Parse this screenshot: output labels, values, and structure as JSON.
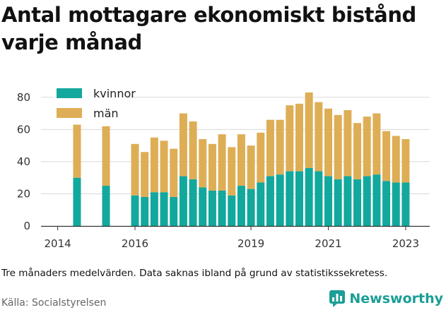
{
  "title": "Antal mottagare ekonomiskt bistånd varje månad",
  "note": "Tre månaders medelvärden. Data saknas ibland på grund av statistikssekretess.",
  "source": "Källa: Socialstyrelsen",
  "brand": "Newsworthy",
  "colors": {
    "kvinnor": "#12a89d",
    "man": "#deae56",
    "grid": "#d9d9d9",
    "axis": "#333333",
    "brand": "#1a9e96"
  },
  "chart_data": {
    "type": "bar",
    "stacked": true,
    "title": "Antal mottagare ekonomiskt bistånd varje månad",
    "xlabel": "",
    "ylabel": "",
    "ylim": [
      0,
      90
    ],
    "yticks": [
      0,
      20,
      40,
      60,
      80
    ],
    "xticks": [
      {
        "label": "2014",
        "at": 2014.0
      },
      {
        "label": "2016",
        "at": 2016.0
      },
      {
        "label": "2019",
        "at": 2019.0
      },
      {
        "label": "2021",
        "at": 2021.0
      },
      {
        "label": "2023",
        "at": 2023.0
      }
    ],
    "xlim": [
      2013.55,
      2023.38
    ],
    "grid": true,
    "legend_position": "top-left",
    "x": [
      2014.5,
      2015.25,
      2016.0,
      2016.25,
      2016.5,
      2016.75,
      2017.0,
      2017.25,
      2017.5,
      2017.75,
      2018.0,
      2018.25,
      2018.5,
      2018.75,
      2019.0,
      2019.25,
      2019.5,
      2019.75,
      2020.0,
      2020.25,
      2020.5,
      2020.75,
      2021.0,
      2021.25,
      2021.5,
      2021.75,
      2022.0,
      2022.25,
      2022.5,
      2022.75,
      2023.0
    ],
    "series": [
      {
        "name": "kvinnor",
        "values": [
          30,
          25,
          19,
          18,
          21,
          21,
          18,
          31,
          29,
          24,
          22,
          22,
          19,
          25,
          23,
          27,
          31,
          32,
          34,
          34,
          36,
          34,
          31,
          29,
          31,
          29,
          31,
          32,
          28,
          27,
          27
        ]
      },
      {
        "name": "män",
        "values": [
          33,
          37,
          32,
          28,
          34,
          32,
          30,
          39,
          36,
          30,
          29,
          35,
          30,
          32,
          27,
          31,
          35,
          34,
          41,
          42,
          47,
          43,
          42,
          40,
          41,
          35,
          37,
          38,
          31,
          29,
          27
        ]
      }
    ],
    "legend": [
      {
        "name": "kvinnor"
      },
      {
        "name": "män"
      }
    ]
  }
}
